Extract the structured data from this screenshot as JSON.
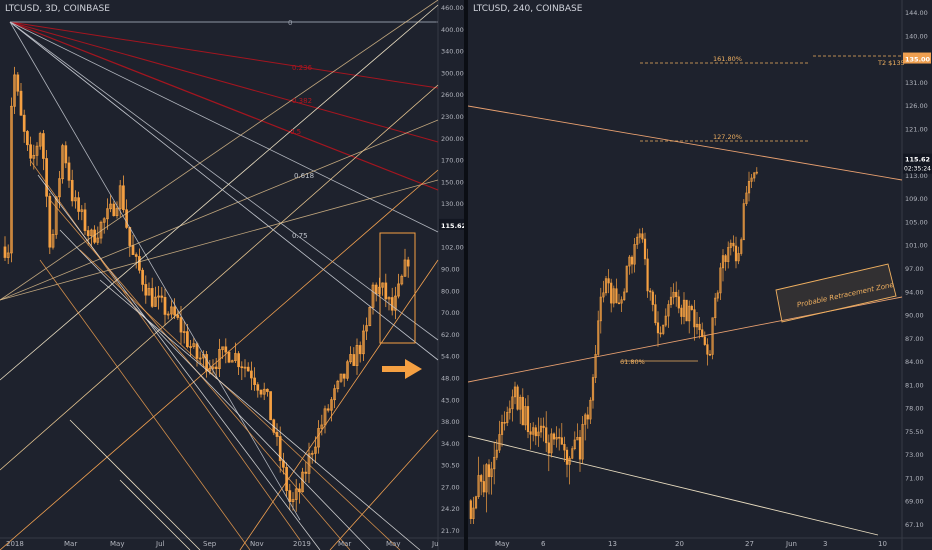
{
  "left": {
    "symbol": "LTCUSD",
    "interval": "3D",
    "exchange": "COINBASE",
    "price_label": "115.62",
    "y_ticks": [
      "460.00",
      "400.00",
      "340.00",
      "300.00",
      "260.00",
      "230.00",
      "200.00",
      "170.00",
      "150.00",
      "130.00",
      "115.62",
      "102.00",
      "90.00",
      "80.00",
      "70.00",
      "62.00",
      "54.00",
      "48.00",
      "43.00",
      "38.00",
      "34.00",
      "30.50",
      "27.00",
      "24.20",
      "21.70"
    ],
    "x_ticks": [
      "2018",
      "Mar",
      "May",
      "Jul",
      "Sep",
      "Nov",
      "2019",
      "Mar",
      "May",
      "Ju"
    ],
    "fib_labels": [
      "0",
      "0.382",
      "0.5",
      "0.618",
      "0.75"
    ],
    "fib_label_extra": [
      "0.236"
    ],
    "colors": {
      "candle": "#f5a042",
      "fib_red": "#b3141e",
      "fan": "#e8c690",
      "channel": "#f0a050",
      "arrow": "#f5a042"
    },
    "arrow_icon": "right-arrow-icon"
  },
  "right": {
    "symbol": "LTCUSD",
    "interval": "240",
    "exchange": "COINBASE",
    "price_label": "115.62",
    "countdown": "02:35:24",
    "target_tag": "135.00",
    "y_ticks": [
      "144.00",
      "140.00",
      "135.00",
      "131.00",
      "126.00",
      "121.00",
      "117.00",
      "113.00",
      "109.00",
      "105.00",
      "101.00",
      "97.00",
      "94.00",
      "90.00",
      "87.00",
      "84.00",
      "81.00",
      "78.00",
      "75.50",
      "73.00",
      "71.00",
      "69.00",
      "67.10"
    ],
    "x_ticks": [
      "May",
      "6",
      "13",
      "20",
      "27",
      "Jun",
      "3",
      "10"
    ],
    "fib_1618": "161.80%",
    "fib_1272": "127.20%",
    "fib_618": "61.80%",
    "target_text": "T2 $135",
    "zone_label": "Probable Retracement Zone",
    "colors": {
      "candle": "#f5a042",
      "fib": "#f0b060",
      "line": "#e8a070",
      "zone_border": "#f0b060"
    }
  },
  "chart_data": [
    {
      "type": "candlestick",
      "title": "LTCUSD, 3D, COINBASE",
      "scale": "log",
      "x_ticks": [
        "2018",
        "Mar",
        "May",
        "Jul",
        "Sep",
        "Nov",
        "2019",
        "Mar",
        "May",
        "Ju"
      ],
      "ylim": [
        21.7,
        460
      ],
      "last_price": 115.62,
      "fib_fan_levels": [
        "0",
        "0.382",
        "0.5",
        "0.618",
        "0.75"
      ],
      "close_path": [
        [
          "2018",
          230
        ],
        [
          "Mar",
          200
        ],
        [
          "May",
          120
        ],
        [
          "Jul",
          80
        ],
        [
          "Sep",
          58
        ],
        [
          "Nov",
          52
        ],
        [
          "Dec",
          30
        ],
        [
          "2019",
          32
        ],
        [
          "Feb",
          45
        ],
        [
          "Mar",
          55
        ],
        [
          "Apr",
          80
        ],
        [
          "May",
          90
        ],
        [
          "late May",
          115.62
        ]
      ]
    },
    {
      "type": "candlestick",
      "title": "LTCUSD, 240, COINBASE",
      "x_ticks": [
        "May",
        "6",
        "13",
        "20",
        "27",
        "Jun",
        "3",
        "10"
      ],
      "ylim": [
        66,
        145
      ],
      "last_price": 115.62,
      "fib_extensions": [
        {
          "label": "161.80%",
          "value": 135.0
        },
        {
          "label": "127.20%",
          "value": 118.0
        },
        {
          "label": "61.80%",
          "value": 86.0
        }
      ],
      "target": {
        "label": "T2 $135",
        "value": 135.0
      },
      "zone": "Probable Retracement Zone",
      "close_path": [
        [
          "May",
          68
        ],
        [
          "3",
          75
        ],
        [
          "6",
          74
        ],
        [
          "9",
          73
        ],
        [
          "11",
          74
        ],
        [
          "13",
          90
        ],
        [
          "14",
          104
        ],
        [
          "15",
          94
        ],
        [
          "18",
          88
        ],
        [
          "20",
          91
        ],
        [
          "22",
          89
        ],
        [
          "24",
          85
        ],
        [
          "25",
          100
        ],
        [
          "26",
          102
        ],
        [
          "27",
          114
        ],
        [
          "28",
          115.62
        ]
      ]
    }
  ]
}
